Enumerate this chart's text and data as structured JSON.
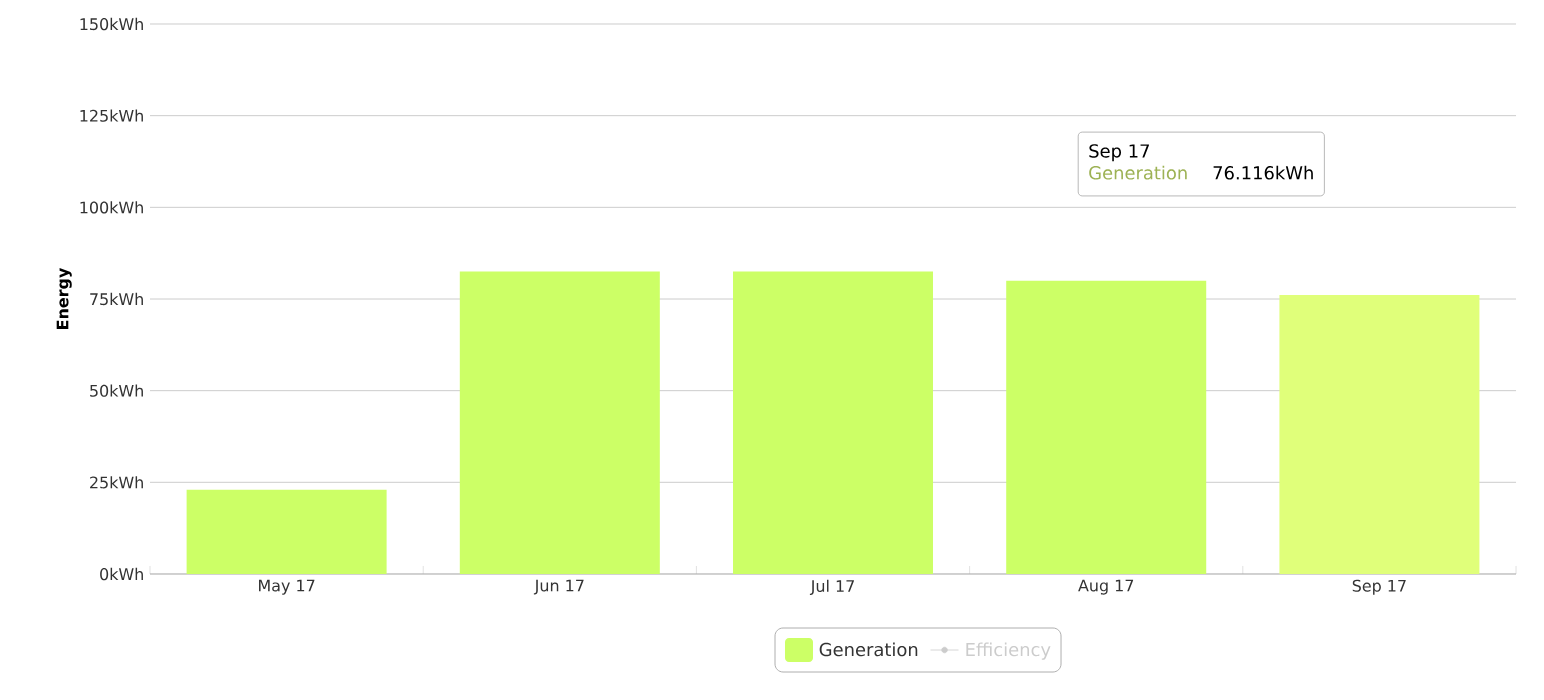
{
  "chart_data": {
    "type": "bar",
    "ylabel": "Energy",
    "categories": [
      "May 17",
      "Jun 17",
      "Jul 17",
      "Aug 17",
      "Sep 17"
    ],
    "series": [
      {
        "name": "Generation",
        "color": "#ccff66",
        "colors": [
          "#ccff66",
          "#ccff66",
          "#ccff66",
          "#ccff66",
          "#e0ff7a"
        ],
        "values": [
          23,
          82.5,
          82.5,
          80,
          76.116
        ]
      },
      {
        "name": "Efficiency",
        "type": "line",
        "color": "#cccccc",
        "values": [
          null,
          null,
          null,
          null,
          null
        ]
      }
    ],
    "ylim": [
      0,
      150
    ],
    "yticks": [
      {
        "value": 0,
        "label": "0kWh"
      },
      {
        "value": 25,
        "label": "25kWh"
      },
      {
        "value": 50,
        "label": "50kWh"
      },
      {
        "value": 75,
        "label": "75kWh"
      },
      {
        "value": 100,
        "label": "100kWh"
      },
      {
        "value": 125,
        "label": "125kWh"
      },
      {
        "value": 150,
        "label": "150kWh"
      }
    ],
    "grid": "y",
    "legend": "bottom",
    "marker": "circle",
    "annotations": [
      "Sep 17",
      "Generation",
      "76.116kWh"
    ]
  }
}
